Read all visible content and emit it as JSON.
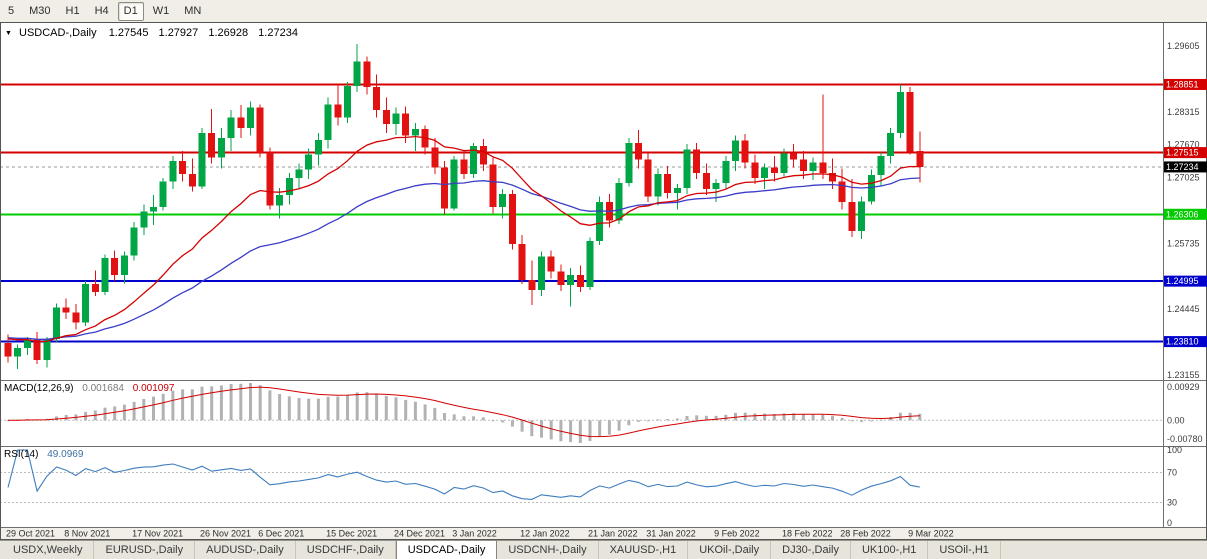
{
  "toolbar": {
    "timeframes": [
      {
        "label": "5",
        "active": false
      },
      {
        "label": "M30",
        "active": false
      },
      {
        "label": "H1",
        "active": false
      },
      {
        "label": "H4",
        "active": false
      },
      {
        "label": "D1",
        "active": true
      },
      {
        "label": "W1",
        "active": false
      },
      {
        "label": "MN",
        "active": false
      }
    ]
  },
  "chart_info": {
    "symbol": "USDCAD-,Daily",
    "open": "1.27545",
    "high": "1.27927",
    "low": "1.26928",
    "close": "1.27234"
  },
  "macd_label": {
    "name": "MACD(12,26,9)",
    "main_value": "0.001684",
    "signal_value": "0.001097"
  },
  "rsi_label": {
    "name": "RSI(14)",
    "value": "49.0969"
  },
  "tabs": [
    {
      "label": "USDX,Weekly",
      "active": false
    },
    {
      "label": "EURUSD-,Daily",
      "active": false
    },
    {
      "label": "AUDUSD-,Daily",
      "active": false
    },
    {
      "label": "USDCHF-,Daily",
      "active": false
    },
    {
      "label": "USDCAD-,Daily",
      "active": true
    },
    {
      "label": "USDCNH-,Daily",
      "active": false
    },
    {
      "label": "XAUUSD-,H1",
      "active": false
    },
    {
      "label": "UKOil-,Daily",
      "active": false
    },
    {
      "label": "DJ30-,Daily",
      "active": false
    },
    {
      "label": "UK100-,H1",
      "active": false
    },
    {
      "label": "USOil-,H1",
      "active": false
    }
  ],
  "chart_data": {
    "type": "candlestick",
    "symbol": "USDCAD",
    "timeframe": "Daily",
    "price_range": [
      1.2306,
      1.3007
    ],
    "colors": {
      "bull": "#00a546",
      "bear": "#e21212",
      "ma_fast": "#d40000",
      "ma_slow": "#3c3cc8",
      "macd_hist": "#b2b2b2",
      "macd_signal": "#d40000",
      "rsi": "#3e7cbf",
      "level_dotted": "#bdbdbd",
      "axis_text": "#3c3c3c",
      "bid_dash": "#999999"
    },
    "price_axis": [
      {
        "label": "1.29605",
        "value": 1.29605
      },
      {
        "label": "1.28315",
        "value": 1.28315
      },
      {
        "label": "1.27670",
        "value": 1.2767
      },
      {
        "label": "1.27025",
        "value": 1.27025
      },
      {
        "label": "1.25735",
        "value": 1.25735
      },
      {
        "label": "1.24445",
        "value": 1.24445
      },
      {
        "label": "1.23155",
        "value": 1.23155
      }
    ],
    "hlines": [
      {
        "price": 1.28851,
        "label": "1.28851",
        "color": "#d40000"
      },
      {
        "price": 1.27515,
        "label": "1.27515",
        "color": "#d40000"
      },
      {
        "price": 1.26306,
        "label": "1.26306",
        "color": "#00cc00"
      },
      {
        "price": 1.24995,
        "label": "1.24995",
        "color": "#0000cc"
      },
      {
        "price": 1.2381,
        "label": "1.23810",
        "color": "#0000cc"
      }
    ],
    "current_price": {
      "value": 1.27234,
      "label": "1.27234",
      "color": "#000000"
    },
    "overlays": {
      "ma_fast": {
        "period": 20
      },
      "ma_slow": {
        "period": 45
      }
    },
    "indicators": [
      {
        "type": "macd",
        "params": [
          12,
          26,
          9
        ],
        "main_value": 0.001684,
        "signal_value": 0.001097,
        "scale_labels": {
          "top": "0.00929",
          "zero": "0.00",
          "bottom": "-0.00780"
        }
      },
      {
        "type": "rsi",
        "params": [
          14
        ],
        "value": 49.0969,
        "levels": [
          70,
          30
        ],
        "scale_labels": [
          "100",
          "70",
          "30",
          "0"
        ]
      }
    ],
    "x_ticks": [
      {
        "i": 0,
        "label": "29 Oct 2021"
      },
      {
        "i": 6,
        "label": "8 Nov 2021"
      },
      {
        "i": 13,
        "label": "17 Nov 2021"
      },
      {
        "i": 20,
        "label": "26 Nov 2021"
      },
      {
        "i": 26,
        "label": "6 Dec 2021"
      },
      {
        "i": 33,
        "label": "15 Dec 2021"
      },
      {
        "i": 40,
        "label": "24 Dec 2021"
      },
      {
        "i": 46,
        "label": "3 Jan 2022"
      },
      {
        "i": 53,
        "label": "12 Jan 2022"
      },
      {
        "i": 60,
        "label": "21 Jan 2022"
      },
      {
        "i": 66,
        "label": "31 Jan 2022"
      },
      {
        "i": 73,
        "label": "9 Feb 2022"
      },
      {
        "i": 80,
        "label": "18 Feb 2022"
      },
      {
        "i": 86,
        "label": "28 Feb 2022"
      },
      {
        "i": 93,
        "label": "9 Mar 2022"
      }
    ],
    "dates": [
      "2021-10-29",
      "2021-11-01",
      "2021-11-02",
      "2021-11-03",
      "2021-11-04",
      "2021-11-05",
      "2021-11-08",
      "2021-11-09",
      "2021-11-10",
      "2021-11-11",
      "2021-11-12",
      "2021-11-15",
      "2021-11-16",
      "2021-11-17",
      "2021-11-18",
      "2021-11-19",
      "2021-11-22",
      "2021-11-23",
      "2021-11-24",
      "2021-11-25",
      "2021-11-26",
      "2021-11-29",
      "2021-11-30",
      "2021-12-01",
      "2021-12-02",
      "2021-12-03",
      "2021-12-06",
      "2021-12-07",
      "2021-12-08",
      "2021-12-09",
      "2021-12-10",
      "2021-12-13",
      "2021-12-14",
      "2021-12-15",
      "2021-12-16",
      "2021-12-17",
      "2021-12-20",
      "2021-12-21",
      "2021-12-22",
      "2021-12-23",
      "2021-12-24",
      "2021-12-27",
      "2021-12-28",
      "2021-12-29",
      "2021-12-30",
      "2021-12-31",
      "2022-01-03",
      "2022-01-04",
      "2022-01-05",
      "2022-01-06",
      "2022-01-07",
      "2022-01-10",
      "2022-01-11",
      "2022-01-12",
      "2022-01-13",
      "2022-01-14",
      "2022-01-17",
      "2022-01-18",
      "2022-01-19",
      "2022-01-20",
      "2022-01-21",
      "2022-01-24",
      "2022-01-25",
      "2022-01-26",
      "2022-01-27",
      "2022-01-28",
      "2022-01-31",
      "2022-02-01",
      "2022-02-02",
      "2022-02-03",
      "2022-02-04",
      "2022-02-07",
      "2022-02-08",
      "2022-02-09",
      "2022-02-10",
      "2022-02-11",
      "2022-02-14",
      "2022-02-15",
      "2022-02-16",
      "2022-02-17",
      "2022-02-18",
      "2022-02-21",
      "2022-02-22",
      "2022-02-23",
      "2022-02-24",
      "2022-02-25",
      "2022-02-28",
      "2022-03-01",
      "2022-03-02",
      "2022-03-03",
      "2022-03-04",
      "2022-03-07",
      "2022-03-08",
      "2022-03-09",
      "2022-03-10"
    ],
    "ohlc": [
      [
        1.2378,
        1.2395,
        1.234,
        1.2352
      ],
      [
        1.2352,
        1.2375,
        1.2327,
        1.2368
      ],
      [
        1.2368,
        1.239,
        1.2355,
        1.2385
      ],
      [
        1.2385,
        1.24,
        1.2337,
        1.2345
      ],
      [
        1.2345,
        1.239,
        1.233,
        1.2386
      ],
      [
        1.2386,
        1.2456,
        1.238,
        1.2448
      ],
      [
        1.2448,
        1.2465,
        1.2425,
        1.2438
      ],
      [
        1.2438,
        1.2455,
        1.2405,
        1.2418
      ],
      [
        1.2418,
        1.25,
        1.2412,
        1.2494
      ],
      [
        1.2494,
        1.252,
        1.247,
        1.2478
      ],
      [
        1.2478,
        1.2552,
        1.2472,
        1.2545
      ],
      [
        1.2545,
        1.256,
        1.25,
        1.2512
      ],
      [
        1.2512,
        1.2558,
        1.2495,
        1.255
      ],
      [
        1.255,
        1.2615,
        1.254,
        1.2605
      ],
      [
        1.2605,
        1.265,
        1.259,
        1.2636
      ],
      [
        1.2636,
        1.2668,
        1.261,
        1.2645
      ],
      [
        1.2645,
        1.2702,
        1.2638,
        1.2695
      ],
      [
        1.2695,
        1.2745,
        1.268,
        1.2735
      ],
      [
        1.2735,
        1.2755,
        1.2695,
        1.271
      ],
      [
        1.271,
        1.274,
        1.2675,
        1.2685
      ],
      [
        1.2685,
        1.28,
        1.268,
        1.279
      ],
      [
        1.279,
        1.2837,
        1.273,
        1.2742
      ],
      [
        1.2742,
        1.28,
        1.272,
        1.278
      ],
      [
        1.278,
        1.2835,
        1.2755,
        1.282
      ],
      [
        1.282,
        1.2845,
        1.278,
        1.28
      ],
      [
        1.28,
        1.2852,
        1.2785,
        1.284
      ],
      [
        1.284,
        1.2846,
        1.2742,
        1.2752
      ],
      [
        1.2752,
        1.2762,
        1.264,
        1.2648
      ],
      [
        1.2648,
        1.2682,
        1.2622,
        1.2668
      ],
      [
        1.2668,
        1.2712,
        1.265,
        1.2702
      ],
      [
        1.2702,
        1.273,
        1.268,
        1.2718
      ],
      [
        1.2718,
        1.276,
        1.27,
        1.2748
      ],
      [
        1.2748,
        1.279,
        1.2726,
        1.2776
      ],
      [
        1.2776,
        1.286,
        1.276,
        1.2846
      ],
      [
        1.2846,
        1.2885,
        1.2805,
        1.282
      ],
      [
        1.282,
        1.289,
        1.281,
        1.2882
      ],
      [
        1.2882,
        1.2964,
        1.287,
        1.293
      ],
      [
        1.293,
        1.294,
        1.2865,
        1.288
      ],
      [
        1.288,
        1.2905,
        1.282,
        1.2835
      ],
      [
        1.2835,
        1.286,
        1.279,
        1.2808
      ],
      [
        1.2808,
        1.284,
        1.2786,
        1.2828
      ],
      [
        1.2828,
        1.2842,
        1.277,
        1.2785
      ],
      [
        1.2785,
        1.281,
        1.2755,
        1.2798
      ],
      [
        1.2798,
        1.2805,
        1.2748,
        1.2762
      ],
      [
        1.2762,
        1.278,
        1.271,
        1.2722
      ],
      [
        1.2722,
        1.2735,
        1.263,
        1.2642
      ],
      [
        1.2642,
        1.2745,
        1.2638,
        1.2738
      ],
      [
        1.2738,
        1.2755,
        1.27,
        1.271
      ],
      [
        1.271,
        1.277,
        1.2702,
        1.2764
      ],
      [
        1.2764,
        1.2778,
        1.2715,
        1.2728
      ],
      [
        1.2728,
        1.2742,
        1.2632,
        1.2645
      ],
      [
        1.2645,
        1.268,
        1.2622,
        1.267
      ],
      [
        1.267,
        1.2678,
        1.2562,
        1.2572
      ],
      [
        1.2572,
        1.259,
        1.2494,
        1.2502
      ],
      [
        1.2502,
        1.254,
        1.2453,
        1.2482
      ],
      [
        1.2482,
        1.2558,
        1.247,
        1.2548
      ],
      [
        1.2548,
        1.256,
        1.2505,
        1.2518
      ],
      [
        1.2518,
        1.2532,
        1.248,
        1.2492
      ],
      [
        1.2492,
        1.2525,
        1.245,
        1.2512
      ],
      [
        1.2512,
        1.253,
        1.2478,
        1.2488
      ],
      [
        1.2488,
        1.2585,
        1.2482,
        1.2578
      ],
      [
        1.2578,
        1.2665,
        1.257,
        1.2655
      ],
      [
        1.2655,
        1.267,
        1.2605,
        1.2618
      ],
      [
        1.2618,
        1.2702,
        1.2612,
        1.2692
      ],
      [
        1.2692,
        1.278,
        1.2685,
        1.277
      ],
      [
        1.277,
        1.2796,
        1.272,
        1.2738
      ],
      [
        1.2738,
        1.275,
        1.2655,
        1.2665
      ],
      [
        1.2665,
        1.272,
        1.2648,
        1.271
      ],
      [
        1.271,
        1.2725,
        1.2662,
        1.2672
      ],
      [
        1.2672,
        1.269,
        1.264,
        1.2682
      ],
      [
        1.2682,
        1.2768,
        1.267,
        1.2758
      ],
      [
        1.2758,
        1.277,
        1.27,
        1.2712
      ],
      [
        1.2712,
        1.273,
        1.2668,
        1.268
      ],
      [
        1.268,
        1.27,
        1.2655,
        1.2692
      ],
      [
        1.2692,
        1.2745,
        1.268,
        1.2735
      ],
      [
        1.2735,
        1.2785,
        1.2715,
        1.2775
      ],
      [
        1.2775,
        1.2788,
        1.272,
        1.2732
      ],
      [
        1.2732,
        1.2748,
        1.269,
        1.2702
      ],
      [
        1.2702,
        1.273,
        1.268,
        1.2722
      ],
      [
        1.2722,
        1.2745,
        1.2695,
        1.2712
      ],
      [
        1.2712,
        1.276,
        1.2705,
        1.275
      ],
      [
        1.275,
        1.2768,
        1.2722,
        1.2738
      ],
      [
        1.2738,
        1.2755,
        1.27,
        1.2715
      ],
      [
        1.2715,
        1.2742,
        1.2698,
        1.2732
      ],
      [
        1.2732,
        1.2865,
        1.27,
        1.2712
      ],
      [
        1.2712,
        1.274,
        1.268,
        1.2695
      ],
      [
        1.2695,
        1.272,
        1.264,
        1.2655
      ],
      [
        1.2655,
        1.27,
        1.2586,
        1.2598
      ],
      [
        1.2598,
        1.2665,
        1.2582,
        1.2656
      ],
      [
        1.2656,
        1.2718,
        1.265,
        1.2708
      ],
      [
        1.2708,
        1.2752,
        1.2686,
        1.2745
      ],
      [
        1.2745,
        1.28,
        1.273,
        1.279
      ],
      [
        1.279,
        1.2885,
        1.278,
        1.287
      ],
      [
        1.287,
        1.288,
        1.2748,
        1.2754
      ],
      [
        1.27545,
        1.27927,
        1.26928,
        1.27234
      ]
    ]
  }
}
